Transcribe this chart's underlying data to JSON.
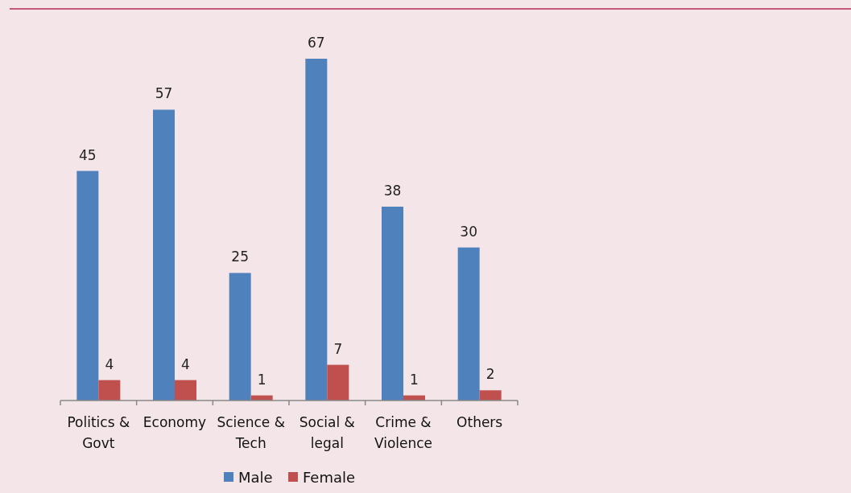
{
  "chart_data": {
    "type": "bar",
    "categories": [
      "Politics & Govt",
      "Economy",
      "Science & Tech",
      "Social & legal",
      "Crime & Violence",
      "Others"
    ],
    "series": [
      {
        "name": "Male",
        "color": "#4f81bd",
        "values": [
          45,
          57,
          25,
          67,
          38,
          30
        ]
      },
      {
        "name": "Female",
        "color": "#c0504d",
        "values": [
          4,
          4,
          1,
          7,
          1,
          2
        ]
      }
    ],
    "data_labels": true,
    "legend": "bottom"
  }
}
